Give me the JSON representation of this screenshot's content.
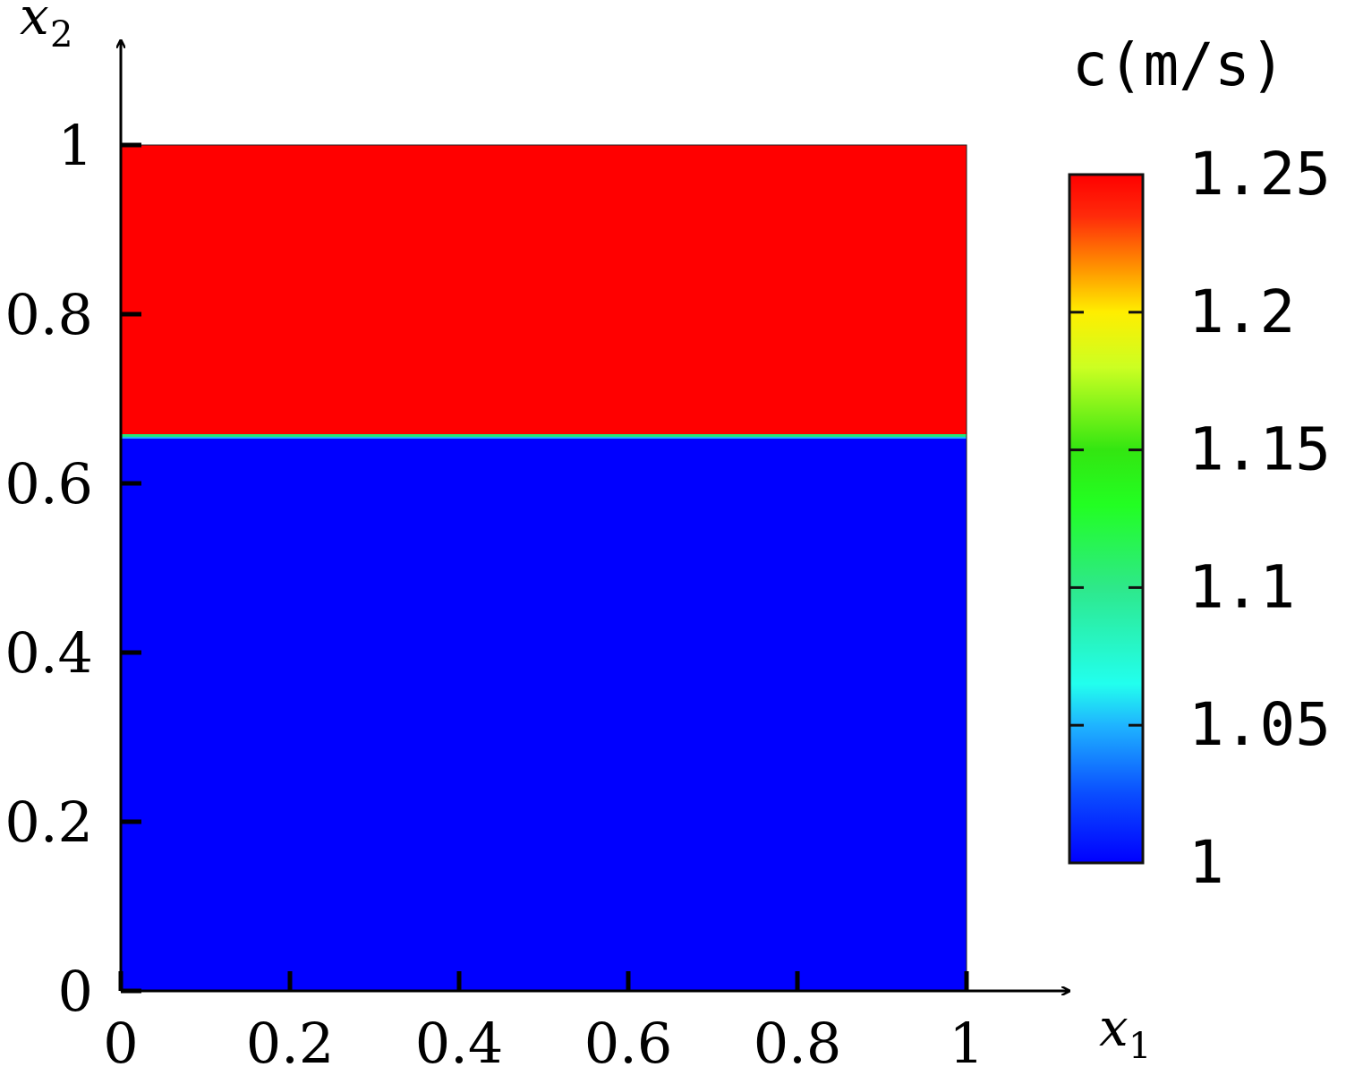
{
  "chart_data": {
    "type": "heatmap",
    "xaxis": {
      "variable": "x",
      "subscript": "1",
      "range": [
        0,
        1
      ],
      "ticks": [
        0,
        0.2,
        0.4,
        0.6,
        0.8,
        1
      ],
      "tick_labels": [
        "0",
        "0.2",
        "0.4",
        "0.6",
        "0.8",
        "1"
      ]
    },
    "yaxis": {
      "variable": "x",
      "subscript": "2",
      "range": [
        0,
        1
      ],
      "ticks": [
        0,
        0.2,
        0.4,
        0.6,
        0.8,
        1
      ],
      "tick_labels": [
        "0",
        "0.2",
        "0.4",
        "0.6",
        "0.8",
        "1"
      ]
    },
    "regions": [
      {
        "x_range": [
          0,
          1
        ],
        "y_range": [
          0,
          0.655
        ],
        "value": 1.0
      },
      {
        "x_range": [
          0,
          1
        ],
        "y_range": [
          0.655,
          1.0
        ],
        "value": 1.25
      }
    ],
    "interface_y": 0.655,
    "colorbar": {
      "title": "c(m/s)",
      "range": [
        1.0,
        1.25
      ],
      "ticks": [
        1,
        1.05,
        1.1,
        1.15,
        1.2,
        1.25
      ],
      "tick_labels": [
        "1",
        "1.05",
        "1.1",
        "1.15",
        "1.2",
        "1.25"
      ],
      "colormap": [
        {
          "value": 1.0,
          "color": "#0000ff"
        },
        {
          "value": 1.025,
          "color": "#0a4dff"
        },
        {
          "value": 1.05,
          "color": "#1fb4ff"
        },
        {
          "value": 1.065,
          "color": "#22ffee"
        },
        {
          "value": 1.1,
          "color": "#2ee88a"
        },
        {
          "value": 1.13,
          "color": "#22ff22"
        },
        {
          "value": 1.15,
          "color": "#33e611"
        },
        {
          "value": 1.18,
          "color": "#ccff22"
        },
        {
          "value": 1.2,
          "color": "#ffee00"
        },
        {
          "value": 1.215,
          "color": "#ff9900"
        },
        {
          "value": 1.235,
          "color": "#ff2a0a"
        },
        {
          "value": 1.25,
          "color": "#ff0000"
        }
      ]
    },
    "colors": {
      "low": "#0000ff",
      "high": "#ff0000",
      "interface": "#22e67a"
    },
    "grid": false
  }
}
